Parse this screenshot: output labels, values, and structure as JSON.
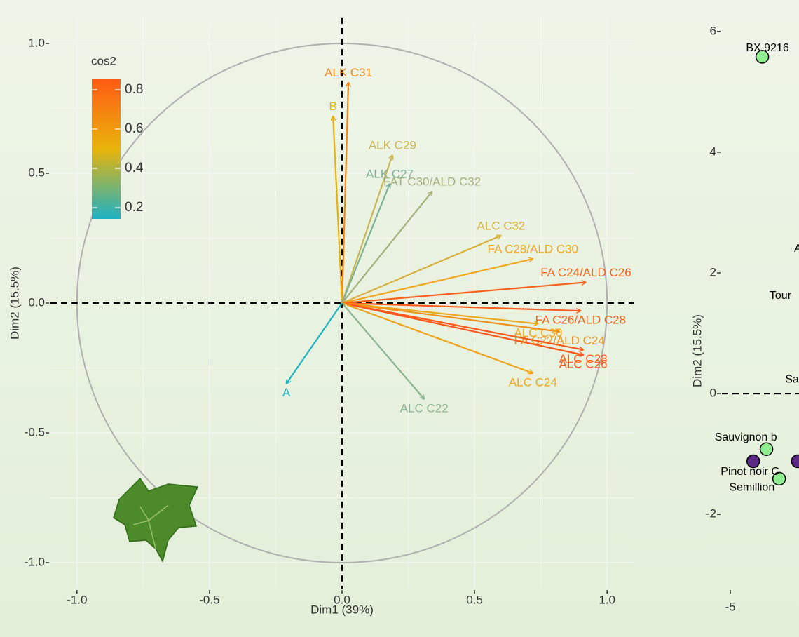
{
  "chart_data": [
    {
      "type": "biplot",
      "xlabel": "Dim1 (39%)",
      "ylabel": "Dim2 (15.5%)",
      "categories": [
        "ALK C31",
        "B",
        "ALK C29",
        "ALK C27",
        "FAT C30/ALD C32",
        "ALC C32",
        "FA C28/ALD C30",
        "FA C24/ALD C26",
        "FA C26/ALD C28",
        "ALC C30",
        "FA C22/ALD C24",
        "ALC C28",
        "ALC C26",
        "ALC C24",
        "ALC C22",
        "A"
      ],
      "x": [
        0.024,
        -0.034,
        0.19,
        0.18,
        0.34,
        0.6,
        0.72,
        0.92,
        0.9,
        0.74,
        0.82,
        0.91,
        0.91,
        0.72,
        0.31,
        -0.21
      ],
      "values": [
        0.85,
        0.72,
        0.57,
        0.46,
        0.43,
        0.26,
        0.17,
        0.08,
        -0.03,
        -0.08,
        -0.11,
        -0.18,
        -0.2,
        -0.27,
        -0.37,
        -0.31
      ],
      "colors": [
        "#f48a14",
        "#e9b10c",
        "#c9b552",
        "#7fb196",
        "#a3b07c",
        "#d9b03e",
        "#f0a71e",
        "#f8621a",
        "#fb5e1a",
        "#eea81e",
        "#f29018",
        "#fb5a1a",
        "#fc581a",
        "#f0a21c",
        "#8ab48f",
        "#1eb2c4"
      ],
      "xlim": [
        -1.1,
        1.1
      ],
      "ylim": [
        -1.1,
        1.1
      ],
      "xticks": [
        {
          "value": -1,
          "label": "-1.0"
        },
        -0.5,
        {
          "value": 0,
          "label": "0.0"
        },
        0.5,
        {
          "value": 1,
          "label": "1.0"
        }
      ],
      "yticks": [
        {
          "value": -1,
          "label": "-1.0"
        },
        -0.5,
        {
          "value": 0,
          "label": "0.0"
        },
        0.5,
        {
          "value": 1,
          "label": "1.0"
        }
      ],
      "grid": true,
      "legend": {
        "title": "cos2",
        "limits": [
          0.143,
          0.857
        ],
        "ticks": [
          0.2,
          0.4,
          0.6,
          0.8
        ],
        "colors": [
          "#1eb2c4",
          "#e9b40a",
          "#ff5a14"
        ]
      }
    },
    {
      "type": "scatter",
      "ylabel": "Dim2 (15.5%)",
      "series": [
        {
          "color": "#90ee90",
          "x": [
            -4.47,
            -4.4,
            -4.19
          ],
          "values": [
            5.58,
            -0.92,
            -1.41
          ]
        },
        {
          "color": "#5b2a86",
          "x": [
            -4.62,
            -3.88
          ],
          "values": [
            -1.12,
            -1.12
          ]
        }
      ],
      "labels": [
        {
          "text": "BX 9216",
          "x": -4.74,
          "y": 5.72
        },
        {
          "text": "A",
          "x": -3.94,
          "y": 2.4
        },
        {
          "text": "Tour",
          "x": -4.35,
          "y": 1.62
        },
        {
          "text": "Sa",
          "x": -4.09,
          "y": 0.23
        },
        {
          "text": "Sauvignon b",
          "x": -5.26,
          "y": -0.73
        },
        {
          "text": "Pinot noir C",
          "x": -5.16,
          "y": -1.3
        },
        {
          "text": "Semillion",
          "x": -5.02,
          "y": -1.56
        }
      ],
      "xlim": [
        -5.14,
        -3.86
      ],
      "ylim": [
        -3.23,
        6.23
      ],
      "xticks": [
        -5
      ],
      "yticks": [
        -2,
        0,
        2,
        4,
        6
      ]
    }
  ]
}
